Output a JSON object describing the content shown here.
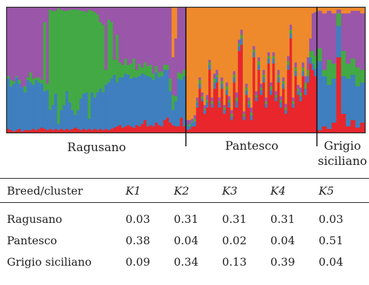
{
  "chart_data": {
    "type": "bar",
    "stacked": true,
    "ylim": [
      0,
      1
    ],
    "cluster_colors": [
      "#e8262c",
      "#3f7fbf",
      "#43a944",
      "#9a56a8",
      "#ef8a2c"
    ],
    "groups": [
      {
        "label": "Ragusano",
        "values": [
          [
            0.03,
            0.4,
            0.02,
            0.55,
            0.0
          ],
          [
            0.02,
            0.35,
            0.05,
            0.58,
            0.0
          ],
          [
            0.01,
            0.38,
            0.02,
            0.59,
            0.0
          ],
          [
            0.02,
            0.42,
            0.01,
            0.55,
            0.0
          ],
          [
            0.03,
            0.36,
            0.03,
            0.58,
            0.0
          ],
          [
            0.01,
            0.35,
            0.0,
            0.64,
            0.0
          ],
          [
            0.02,
            0.3,
            0.05,
            0.63,
            0.0
          ],
          [
            0.02,
            0.4,
            0.02,
            0.56,
            0.0
          ],
          [
            0.02,
            0.38,
            0.08,
            0.52,
            0.0
          ],
          [
            0.03,
            0.35,
            0.05,
            0.57,
            0.0
          ],
          [
            0.02,
            0.4,
            0.02,
            0.56,
            0.0
          ],
          [
            0.03,
            0.37,
            0.04,
            0.56,
            0.0
          ],
          [
            0.04,
            0.35,
            0.03,
            0.58,
            0.0
          ],
          [
            0.03,
            0.3,
            0.55,
            0.12,
            0.0
          ],
          [
            0.02,
            0.32,
            0.05,
            0.61,
            0.0
          ],
          [
            0.03,
            0.15,
            0.8,
            0.02,
            0.0
          ],
          [
            0.02,
            0.2,
            0.75,
            0.03,
            0.0
          ],
          [
            0.03,
            0.28,
            0.66,
            0.03,
            0.0
          ],
          [
            0.02,
            0.05,
            0.92,
            0.01,
            0.0
          ],
          [
            0.03,
            0.15,
            0.8,
            0.02,
            0.0
          ],
          [
            0.02,
            0.2,
            0.75,
            0.03,
            0.0
          ],
          [
            0.03,
            0.3,
            0.64,
            0.03,
            0.0
          ],
          [
            0.02,
            0.22,
            0.74,
            0.02,
            0.0
          ],
          [
            0.03,
            0.15,
            0.8,
            0.02,
            0.0
          ],
          [
            0.04,
            0.1,
            0.84,
            0.02,
            0.0
          ],
          [
            0.03,
            0.15,
            0.8,
            0.02,
            0.0
          ],
          [
            0.02,
            0.25,
            0.7,
            0.03,
            0.0
          ],
          [
            0.03,
            0.28,
            0.66,
            0.03,
            0.0
          ],
          [
            0.02,
            0.3,
            0.64,
            0.04,
            0.0
          ],
          [
            0.03,
            0.08,
            0.87,
            0.02,
            0.0
          ],
          [
            0.02,
            0.3,
            0.65,
            0.03,
            0.0
          ],
          [
            0.03,
            0.25,
            0.68,
            0.04,
            0.0
          ],
          [
            0.02,
            0.3,
            0.62,
            0.06,
            0.0
          ],
          [
            0.03,
            0.32,
            0.53,
            0.12,
            0.0
          ],
          [
            0.02,
            0.3,
            0.54,
            0.14,
            0.0
          ],
          [
            0.03,
            0.35,
            0.12,
            0.5,
            0.0
          ],
          [
            0.02,
            0.38,
            0.5,
            0.1,
            0.0
          ],
          [
            0.03,
            0.4,
            0.45,
            0.12,
            0.0
          ],
          [
            0.04,
            0.42,
            0.12,
            0.42,
            0.0
          ],
          [
            0.05,
            0.35,
            0.38,
            0.22,
            0.0
          ],
          [
            0.06,
            0.38,
            0.12,
            0.44,
            0.0
          ],
          [
            0.04,
            0.4,
            0.1,
            0.46,
            0.0
          ],
          [
            0.05,
            0.42,
            0.12,
            0.41,
            0.0
          ],
          [
            0.06,
            0.4,
            0.08,
            0.46,
            0.0
          ],
          [
            0.05,
            0.38,
            0.12,
            0.45,
            0.0
          ],
          [
            0.04,
            0.4,
            0.15,
            0.41,
            0.0
          ],
          [
            0.06,
            0.38,
            0.06,
            0.5,
            0.0
          ],
          [
            0.05,
            0.4,
            0.1,
            0.45,
            0.0
          ],
          [
            0.07,
            0.4,
            0.05,
            0.48,
            0.0
          ],
          [
            0.1,
            0.36,
            0.1,
            0.44,
            0.0
          ],
          [
            0.05,
            0.4,
            0.08,
            0.47,
            0.0
          ],
          [
            0.06,
            0.38,
            0.1,
            0.46,
            0.0
          ],
          [
            0.05,
            0.37,
            0.05,
            0.53,
            0.0
          ],
          [
            0.08,
            0.4,
            0.05,
            0.47,
            0.0
          ],
          [
            0.06,
            0.38,
            0.04,
            0.52,
            0.0
          ],
          [
            0.05,
            0.4,
            0.04,
            0.51,
            0.0
          ],
          [
            0.1,
            0.4,
            0.04,
            0.46,
            0.0
          ],
          [
            0.12,
            0.38,
            0.04,
            0.46,
            0.0
          ],
          [
            0.08,
            0.25,
            0.1,
            0.57,
            0.0
          ],
          [
            0.06,
            0.12,
            0.12,
            0.3,
            0.4
          ],
          [
            0.05,
            0.2,
            0.04,
            0.46,
            0.25
          ],
          [
            0.05,
            0.38,
            0.05,
            0.52,
            0.0
          ],
          [
            0.12,
            0.3,
            0.05,
            0.53,
            0.0
          ],
          [
            0.05,
            0.4,
            0.05,
            0.5,
            0.0
          ]
        ]
      },
      {
        "label": "Pantesco",
        "values": [
          [
            0.02,
            0.03,
            0.01,
            0.04,
            0.9
          ],
          [
            0.03,
            0.02,
            0.02,
            0.03,
            0.9
          ],
          [
            0.05,
            0.03,
            0.01,
            0.02,
            0.89
          ],
          [
            0.05,
            0.04,
            0.02,
            0.03,
            0.86
          ],
          [
            0.2,
            0.04,
            0.01,
            0.03,
            0.72
          ],
          [
            0.35,
            0.04,
            0.03,
            0.02,
            0.56
          ],
          [
            0.25,
            0.02,
            0.02,
            0.03,
            0.68
          ],
          [
            0.15,
            0.03,
            0.01,
            0.03,
            0.78
          ],
          [
            0.2,
            0.04,
            0.02,
            0.04,
            0.7
          ],
          [
            0.5,
            0.04,
            0.02,
            0.02,
            0.42
          ],
          [
            0.2,
            0.03,
            0.02,
            0.03,
            0.72
          ],
          [
            0.35,
            0.05,
            0.03,
            0.04,
            0.53
          ],
          [
            0.4,
            0.04,
            0.02,
            0.04,
            0.5
          ],
          [
            0.2,
            0.04,
            0.01,
            0.03,
            0.72
          ],
          [
            0.35,
            0.04,
            0.02,
            0.03,
            0.56
          ],
          [
            0.15,
            0.03,
            0.02,
            0.02,
            0.78
          ],
          [
            0.3,
            0.04,
            0.03,
            0.03,
            0.6
          ],
          [
            0.2,
            0.04,
            0.02,
            0.03,
            0.71
          ],
          [
            0.1,
            0.03,
            0.02,
            0.03,
            0.82
          ],
          [
            0.4,
            0.04,
            0.02,
            0.03,
            0.51
          ],
          [
            0.2,
            0.05,
            0.03,
            0.04,
            0.68
          ],
          [
            0.65,
            0.04,
            0.02,
            0.03,
            0.26
          ],
          [
            0.7,
            0.05,
            0.03,
            0.04,
            0.18
          ],
          [
            0.1,
            0.03,
            0.02,
            0.02,
            0.83
          ],
          [
            0.3,
            0.04,
            0.02,
            0.03,
            0.61
          ],
          [
            0.2,
            0.03,
            0.02,
            0.03,
            0.72
          ],
          [
            0.1,
            0.04,
            0.02,
            0.04,
            0.8
          ],
          [
            0.6,
            0.04,
            0.02,
            0.03,
            0.31
          ],
          [
            0.25,
            0.03,
            0.02,
            0.03,
            0.67
          ],
          [
            0.5,
            0.04,
            0.03,
            0.03,
            0.4
          ],
          [
            0.3,
            0.04,
            0.02,
            0.03,
            0.61
          ],
          [
            0.4,
            0.04,
            0.02,
            0.04,
            0.5
          ],
          [
            0.2,
            0.03,
            0.02,
            0.03,
            0.72
          ],
          [
            0.55,
            0.04,
            0.02,
            0.03,
            0.36
          ],
          [
            0.3,
            0.04,
            0.03,
            0.03,
            0.6
          ],
          [
            0.55,
            0.04,
            0.02,
            0.03,
            0.36
          ],
          [
            0.25,
            0.03,
            0.02,
            0.03,
            0.67
          ],
          [
            0.4,
            0.04,
            0.02,
            0.04,
            0.5
          ],
          [
            0.2,
            0.04,
            0.02,
            0.03,
            0.71
          ],
          [
            0.35,
            0.04,
            0.02,
            0.03,
            0.56
          ],
          [
            0.15,
            0.03,
            0.02,
            0.03,
            0.77
          ],
          [
            0.5,
            0.04,
            0.03,
            0.04,
            0.39
          ],
          [
            0.75,
            0.04,
            0.03,
            0.04,
            0.14
          ],
          [
            0.2,
            0.03,
            0.02,
            0.03,
            0.72
          ],
          [
            0.45,
            0.04,
            0.03,
            0.04,
            0.44
          ],
          [
            0.3,
            0.03,
            0.02,
            0.03,
            0.62
          ],
          [
            0.25,
            0.04,
            0.03,
            0.04,
            0.64
          ],
          [
            0.45,
            0.04,
            0.03,
            0.04,
            0.44
          ],
          [
            0.3,
            0.05,
            0.05,
            0.05,
            0.55
          ],
          [
            0.4,
            0.05,
            0.05,
            0.1,
            0.4
          ],
          [
            0.55,
            0.05,
            0.05,
            0.1,
            0.25
          ],
          [
            0.5,
            0.05,
            0.1,
            0.3,
            0.05
          ],
          [
            0.45,
            0.06,
            0.1,
            0.35,
            0.04
          ]
        ]
      },
      {
        "label": "Grigio siciliano",
        "values": [
          [
            0.02,
            0.55,
            0.1,
            0.3,
            0.03
          ],
          [
            0.05,
            0.4,
            0.05,
            0.45,
            0.05
          ],
          [
            0.03,
            0.35,
            0.2,
            0.39,
            0.03
          ],
          [
            0.08,
            0.35,
            0.12,
            0.4,
            0.05
          ],
          [
            0.6,
            0.25,
            0.1,
            0.03,
            0.02
          ],
          [
            0.15,
            0.3,
            0.2,
            0.3,
            0.05
          ],
          [
            0.05,
            0.38,
            0.12,
            0.4,
            0.05
          ],
          [
            0.1,
            0.36,
            0.13,
            0.38,
            0.03
          ],
          [
            0.04,
            0.33,
            0.15,
            0.45,
            0.03
          ],
          [
            0.08,
            0.32,
            0.1,
            0.45,
            0.05
          ]
        ]
      }
    ],
    "table": {
      "headers": [
        "Breed/cluster",
        "K1",
        "K2",
        "K3",
        "K4",
        "K5"
      ],
      "rows": [
        [
          "Ragusano",
          "0.03",
          "0.31",
          "0.31",
          "0.31",
          "0.03"
        ],
        [
          "Pantesco",
          "0.38",
          "0.04",
          "0.02",
          "0.04",
          "0.51"
        ],
        [
          "Grigio siciliano",
          "0.09",
          "0.34",
          "0.13",
          "0.39",
          "0.04"
        ]
      ]
    }
  },
  "labels": {
    "ragusano": "Ragusano",
    "pantesco": "Pantesco",
    "grigio_line1": "Grigio",
    "grigio_line2": "siciliano"
  }
}
